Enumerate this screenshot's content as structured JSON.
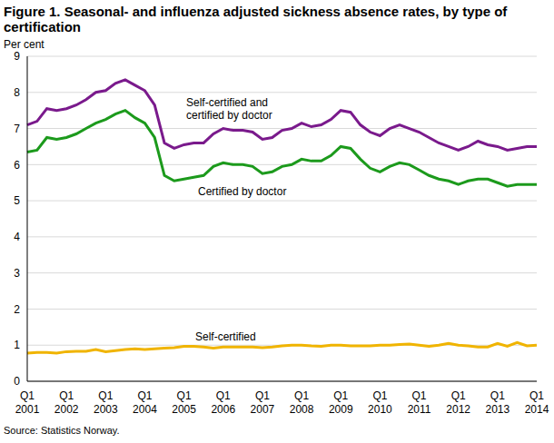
{
  "chart_data": {
    "type": "line",
    "title": "Figure 1. Seasonal- and influenza adjusted sickness absence rates, by type of certification",
    "y_label": "Per cent",
    "source": "Source: Statistics Norway.",
    "categories": [
      "Q1 2001",
      null,
      null,
      null,
      "Q1 2002",
      null,
      null,
      null,
      "Q1 2003",
      null,
      null,
      null,
      "Q1 2004",
      null,
      null,
      null,
      "Q1 2005",
      null,
      null,
      null,
      "Q1 2006",
      null,
      null,
      null,
      "Q1 2007",
      null,
      null,
      null,
      "Q1 2008",
      null,
      null,
      null,
      "Q1 2009",
      null,
      null,
      null,
      "Q1 2010",
      null,
      null,
      null,
      "Q1 2011",
      null,
      null,
      null,
      "Q1 2012",
      null,
      null,
      null,
      "Q1 2013",
      null,
      null,
      null,
      "Q1 2014"
    ],
    "series": [
      {
        "name": "Self-certified and certified by doctor",
        "color": "#7a1a8c",
        "values": [
          7.1,
          7.2,
          7.55,
          7.5,
          7.55,
          7.65,
          7.8,
          8.0,
          8.05,
          8.25,
          8.35,
          8.2,
          8.05,
          7.65,
          6.6,
          6.45,
          6.55,
          6.6,
          6.6,
          6.85,
          7.0,
          6.95,
          6.95,
          6.9,
          6.7,
          6.75,
          6.95,
          7.0,
          7.15,
          7.05,
          7.1,
          7.25,
          7.5,
          7.45,
          7.1,
          6.9,
          6.8,
          7.0,
          7.1,
          7.0,
          6.9,
          6.75,
          6.6,
          6.5,
          6.4,
          6.5,
          6.65,
          6.55,
          6.5,
          6.4,
          6.45,
          6.5,
          6.5
        ]
      },
      {
        "name": "Certified by doctor",
        "color": "#1c9a1c",
        "values": [
          6.35,
          6.4,
          6.75,
          6.7,
          6.75,
          6.85,
          7.0,
          7.15,
          7.25,
          7.4,
          7.5,
          7.3,
          7.15,
          6.75,
          5.7,
          5.55,
          5.6,
          5.65,
          5.7,
          5.95,
          6.05,
          6.0,
          6.0,
          5.95,
          5.75,
          5.8,
          5.95,
          6.0,
          6.15,
          6.1,
          6.1,
          6.25,
          6.5,
          6.45,
          6.15,
          5.9,
          5.8,
          5.95,
          6.05,
          6.0,
          5.85,
          5.7,
          5.6,
          5.55,
          5.45,
          5.55,
          5.6,
          5.6,
          5.5,
          5.4,
          5.45,
          5.45,
          5.45
        ]
      },
      {
        "name": "Self-certified",
        "color": "#f0b400",
        "values": [
          0.78,
          0.8,
          0.8,
          0.78,
          0.82,
          0.83,
          0.83,
          0.88,
          0.82,
          0.85,
          0.88,
          0.9,
          0.88,
          0.9,
          0.92,
          0.93,
          0.97,
          0.97,
          0.95,
          0.92,
          0.95,
          0.95,
          0.95,
          0.95,
          0.93,
          0.95,
          0.98,
          1.0,
          1.0,
          0.98,
          0.97,
          1.0,
          1.0,
          0.98,
          0.98,
          0.98,
          1.0,
          1.0,
          1.02,
          1.03,
          1.0,
          0.97,
          1.0,
          1.05,
          1.0,
          0.98,
          0.95,
          0.95,
          1.05,
          0.97,
          1.07,
          0.98,
          1.0
        ]
      }
    ],
    "ylim": [
      0,
      9
    ],
    "yticks": [
      0,
      1,
      2,
      3,
      4,
      5,
      6,
      7,
      8,
      9
    ],
    "grid": true
  }
}
